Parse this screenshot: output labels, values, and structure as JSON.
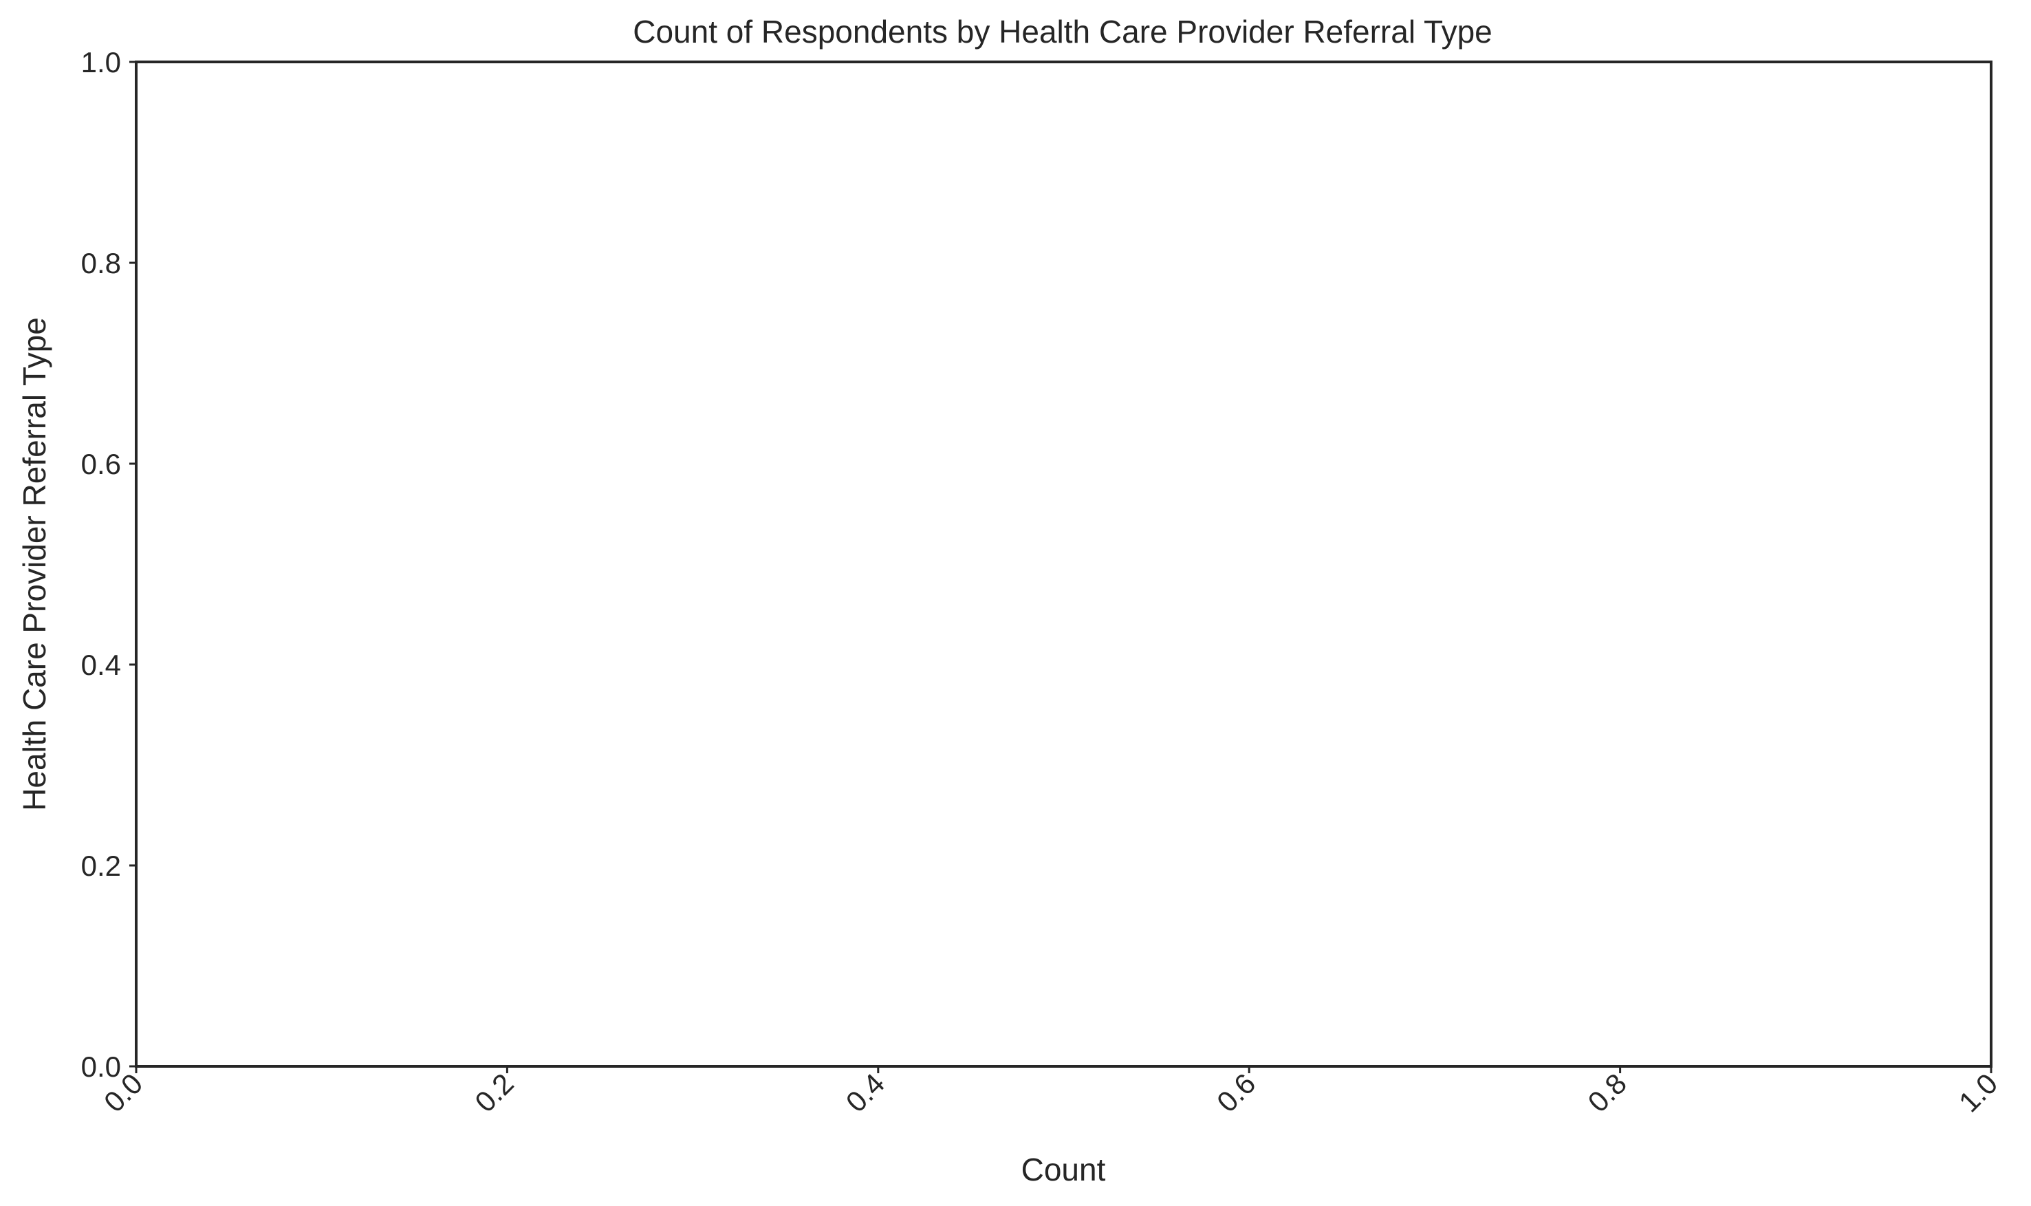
{
  "chart_data": {
    "type": "bar",
    "orientation": "horizontal",
    "title": "Count of Respondents by Health Care Provider Referral Type",
    "xlabel": "Count",
    "ylabel": "Health Care Provider Referral Type",
    "xlim": [
      0.0,
      1.0
    ],
    "ylim": [
      0.0,
      1.0
    ],
    "x_ticks": [
      "0.0",
      "0.2",
      "0.4",
      "0.6",
      "0.8",
      "1.0"
    ],
    "y_ticks": [
      "0.0",
      "0.2",
      "0.4",
      "0.6",
      "0.8",
      "1.0"
    ],
    "x_tick_rotation_deg": 45,
    "categories": [],
    "values": [],
    "grid": false,
    "legend": "none",
    "colors": {
      "axes_edge": "#262626",
      "text": "#262626",
      "background": "#ffffff"
    }
  }
}
